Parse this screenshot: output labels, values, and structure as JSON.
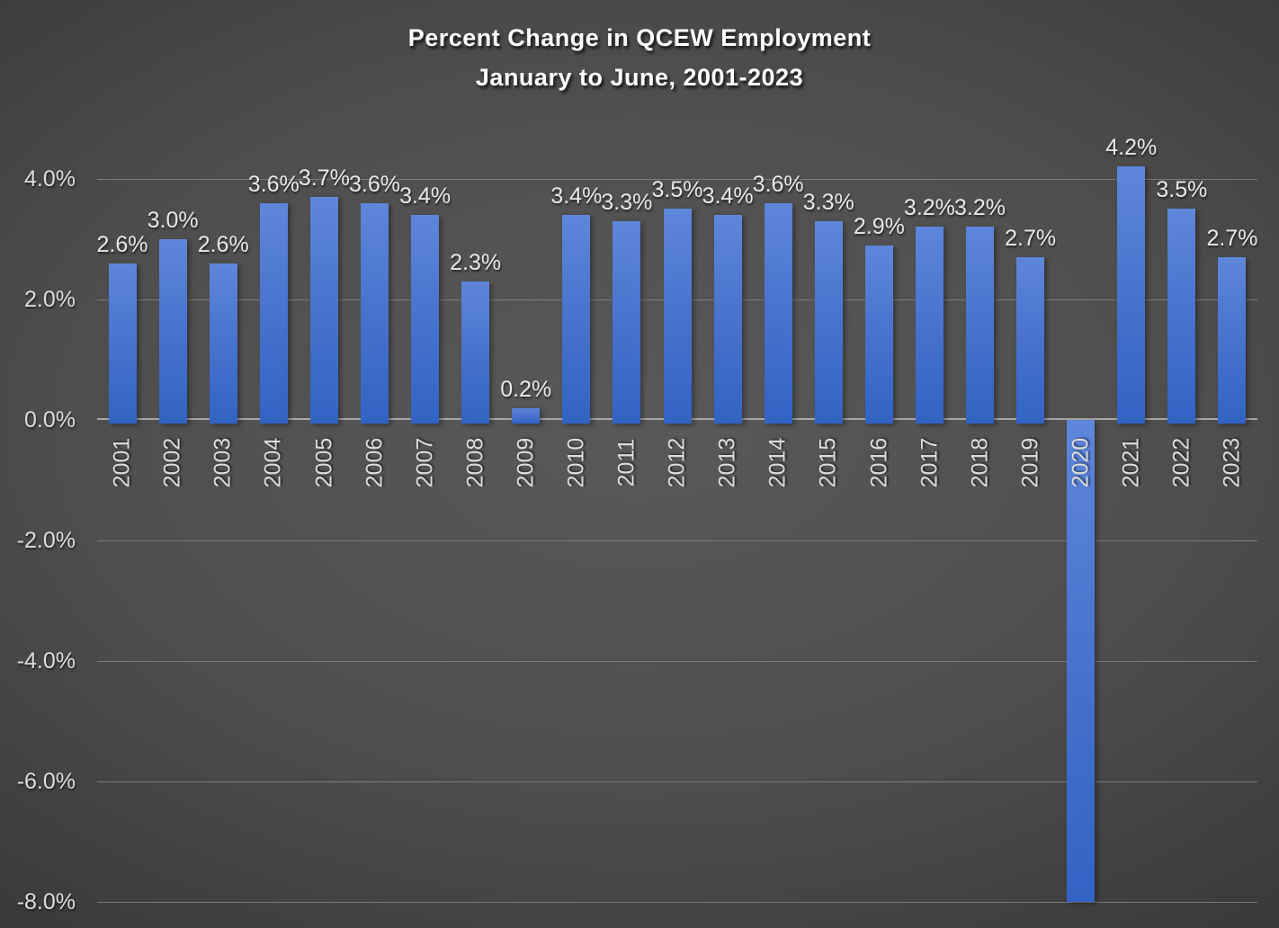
{
  "chart_data": {
    "type": "bar",
    "title": "Percent Change in QCEW Employment",
    "subtitle": "January to June, 2001-2023",
    "categories": [
      "2001",
      "2002",
      "2003",
      "2004",
      "2005",
      "2006",
      "2007",
      "2008",
      "2009",
      "2010",
      "2011",
      "2012",
      "2013",
      "2014",
      "2015",
      "2016",
      "2017",
      "2018",
      "2019",
      "2020",
      "2021",
      "2022",
      "2023"
    ],
    "values": [
      2.6,
      3.0,
      2.6,
      3.6,
      3.7,
      3.6,
      3.4,
      2.3,
      0.2,
      3.4,
      3.3,
      3.5,
      3.4,
      3.6,
      3.3,
      2.9,
      3.2,
      3.2,
      2.7,
      -8.0,
      4.2,
      3.5,
      2.7
    ],
    "data_labels": [
      "2.6%",
      "3.0%",
      "2.6%",
      "3.6%",
      "3.7%",
      "3.6%",
      "3.4%",
      "2.3%",
      "0.2%",
      "3.4%",
      "3.3%",
      "3.5%",
      "3.4%",
      "3.6%",
      "3.3%",
      "2.9%",
      "3.2%",
      "3.2%",
      "2.7%",
      "",
      "4.2%",
      "3.5%",
      "2.7%"
    ],
    "note_2020": "bar clipped at axis minimum, no data label shown",
    "xlabel": "",
    "ylabel": "",
    "y_ticks": [
      {
        "value": 4,
        "label": "4.0%"
      },
      {
        "value": 2,
        "label": "2.0%"
      },
      {
        "value": 0,
        "label": "0.0%"
      },
      {
        "value": -2,
        "label": "-2.0%"
      },
      {
        "value": -4,
        "label": "-4.0%"
      },
      {
        "value": -6,
        "label": "-6.0%"
      },
      {
        "value": -8,
        "label": "-8.0%"
      }
    ],
    "ylim": [
      -8.0,
      4.5
    ],
    "grid": true,
    "legend": false,
    "colors": {
      "bar_gradient_top": "#5e86da",
      "bar_gradient_bottom": "#3263c4",
      "background_center": "#595959",
      "background_edge": "#262626",
      "gridline": "#828282",
      "zero_line": "#a8a8a8",
      "title": "#ffffff",
      "data_label": "#e8e8e8",
      "tick_label": "#dcdcdc"
    }
  }
}
